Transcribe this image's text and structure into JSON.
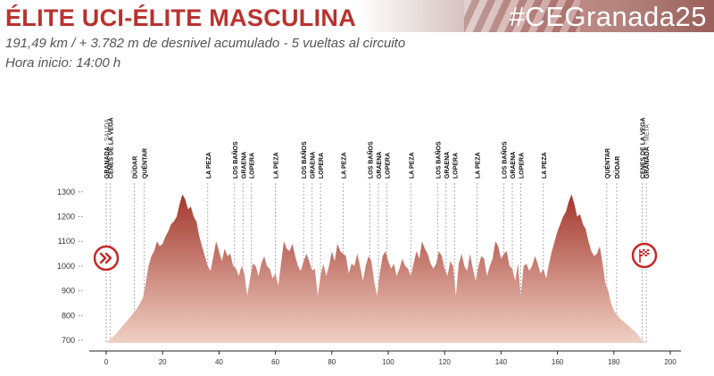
{
  "header": {
    "title": "ÉLITE UCI-ÉLITE MASCULINA",
    "hashtag": "#CEGranada25",
    "subtitle": "191,49 km / + 3.782 m de desnivel acumulado - 5 vueltas al circuito",
    "start_time": "Hora inicio: 14:00 h"
  },
  "colors": {
    "title": "#b8322f",
    "profile_top": "#a3372c",
    "profile_bottom": "#f0d0c4",
    "marker": "#c62828"
  },
  "icons": {
    "start": "double-chevron-right-icon",
    "finish": "checkered-flag-icon"
  },
  "chart_data": {
    "type": "area",
    "title": "",
    "xlabel": "",
    "ylabel": "",
    "xlim": [
      0,
      200
    ],
    "ylim": [
      700,
      1300
    ],
    "x_ticks": [
      0,
      20,
      40,
      60,
      80,
      100,
      120,
      140,
      160,
      180,
      200
    ],
    "y_ticks": [
      700,
      800,
      900,
      1000,
      1100,
      1200,
      1300
    ],
    "grid": false,
    "legend": "none",
    "series": [
      {
        "x": [
          0,
          3,
          6,
          9,
          11,
          13,
          14,
          15,
          16,
          17,
          18,
          19,
          20,
          21,
          22,
          23,
          24,
          25,
          26,
          27,
          28,
          29,
          30,
          31,
          32,
          33,
          34,
          35,
          36,
          37,
          38,
          39,
          40,
          41,
          42,
          43,
          44,
          45,
          46,
          47,
          48,
          49,
          50,
          51,
          52,
          53,
          54,
          55,
          56,
          57,
          58,
          59,
          60,
          61,
          62,
          63,
          64,
          65,
          66,
          67,
          68,
          69,
          70,
          71,
          72,
          73,
          74,
          75,
          76,
          77,
          78,
          79,
          80,
          81,
          82,
          83,
          84,
          85,
          86,
          87,
          88,
          89,
          90,
          91,
          92,
          93,
          94,
          95,
          96,
          97,
          98,
          99,
          100,
          101,
          102,
          103,
          104,
          105,
          106,
          107,
          108,
          109,
          110,
          111,
          112,
          113,
          114,
          115,
          116,
          117,
          118,
          119,
          120,
          121,
          122,
          123,
          124,
          125,
          126,
          127,
          128,
          129,
          130,
          131,
          132,
          133,
          134,
          135,
          136,
          137,
          138,
          139,
          140,
          141,
          142,
          143,
          144,
          145,
          146,
          147,
          148,
          149,
          150,
          151,
          152,
          153,
          154,
          155,
          156,
          157,
          158,
          159,
          160,
          161,
          162,
          163,
          164,
          165,
          166,
          167,
          168,
          169,
          170,
          171,
          172,
          173,
          174,
          175,
          176,
          177,
          178,
          179,
          180,
          182,
          184,
          186,
          188,
          190,
          191.5
        ],
        "y": [
          690,
          720,
          760,
          800,
          830,
          870,
          930,
          1000,
          1040,
          1060,
          1100,
          1080,
          1090,
          1120,
          1140,
          1170,
          1180,
          1200,
          1250,
          1290,
          1270,
          1230,
          1240,
          1200,
          1180,
          1120,
          1080,
          1040,
          1000,
          980,
          1040,
          1100,
          1060,
          1020,
          1070,
          1040,
          1050,
          1000,
          990,
          960,
          1000,
          970,
          880,
          950,
          1010,
          1000,
          960,
          1010,
          1040,
          1000,
          990,
          950,
          970,
          920,
          1010,
          1100,
          1070,
          1060,
          1090,
          1040,
          1000,
          980,
          1020,
          1050,
          1020,
          980,
          990,
          880,
          960,
          1010,
          960,
          1000,
          1060,
          1020,
          1090,
          1060,
          1050,
          1040,
          970,
          1010,
          1000,
          1050,
          1000,
          940,
          1000,
          1040,
          1020,
          940,
          880,
          970,
          1040,
          1060,
          1020,
          990,
          1010,
          960,
          990,
          1030,
          1000,
          990,
          960,
          1010,
          1060,
          1030,
          1100,
          1070,
          1050,
          1010,
          990,
          1010,
          1060,
          1040,
          990,
          960,
          1020,
          1000,
          880,
          1010,
          1050,
          1000,
          980,
          1050,
          990,
          940,
          1000,
          1040,
          1030,
          960,
          1000,
          1030,
          1100,
          1080,
          1030,
          1050,
          1060,
          1000,
          990,
          940,
          1010,
          880,
          1000,
          1010,
          980,
          1000,
          1040,
          1010,
          970,
          990,
          950,
          1010,
          1060,
          1100,
          1140,
          1170,
          1200,
          1220,
          1260,
          1290,
          1250,
          1200,
          1210,
          1170,
          1150,
          1100,
          1060,
          1040,
          1050,
          1080,
          1010,
          930,
          900,
          850,
          820,
          790,
          770,
          750,
          730,
          700,
          690
        ]
      }
    ],
    "annotations": [
      {
        "km": 0,
        "label": "GRANADA",
        "sub": "SALIDA"
      },
      {
        "km": 1.5,
        "label": "CENES DE LA VEGA"
      },
      {
        "km": 10,
        "label": "DÚDAR"
      },
      {
        "km": 13.5,
        "label": "QUÉNTAR"
      },
      {
        "km": 36,
        "label": "LA PEZA"
      },
      {
        "km": 45.5,
        "label": "LOS BAÑOS"
      },
      {
        "km": 48.5,
        "label": "GRAENA"
      },
      {
        "km": 51.5,
        "label": "LOPERA"
      },
      {
        "km": 60,
        "label": "LA PEZA"
      },
      {
        "km": 70,
        "label": "LOS BAÑOS"
      },
      {
        "km": 73,
        "label": "GRAENA"
      },
      {
        "km": 76,
        "label": "LOPERA"
      },
      {
        "km": 84,
        "label": "LA PEZA"
      },
      {
        "km": 93.5,
        "label": "LOS BAÑOS"
      },
      {
        "km": 96.5,
        "label": "GRAENA"
      },
      {
        "km": 99.5,
        "label": "LOPERA"
      },
      {
        "km": 108,
        "label": "LA PEZA"
      },
      {
        "km": 117.5,
        "label": "LOS BAÑOS"
      },
      {
        "km": 120.5,
        "label": "GRAENA"
      },
      {
        "km": 123.5,
        "label": "LOPERA"
      },
      {
        "km": 131.5,
        "label": "LA PEZA"
      },
      {
        "km": 141,
        "label": "LOS BAÑOS"
      },
      {
        "km": 144,
        "label": "GRAENA"
      },
      {
        "km": 147,
        "label": "LOPERA"
      },
      {
        "km": 155,
        "label": "LA PEZA"
      },
      {
        "km": 177.5,
        "label": "QUÉNTAR"
      },
      {
        "km": 181,
        "label": "DÚDAR"
      },
      {
        "km": 190,
        "label": "CENES DE LA VEGA"
      },
      {
        "km": 191.5,
        "label": "GRANADA",
        "sub": "META"
      }
    ]
  }
}
